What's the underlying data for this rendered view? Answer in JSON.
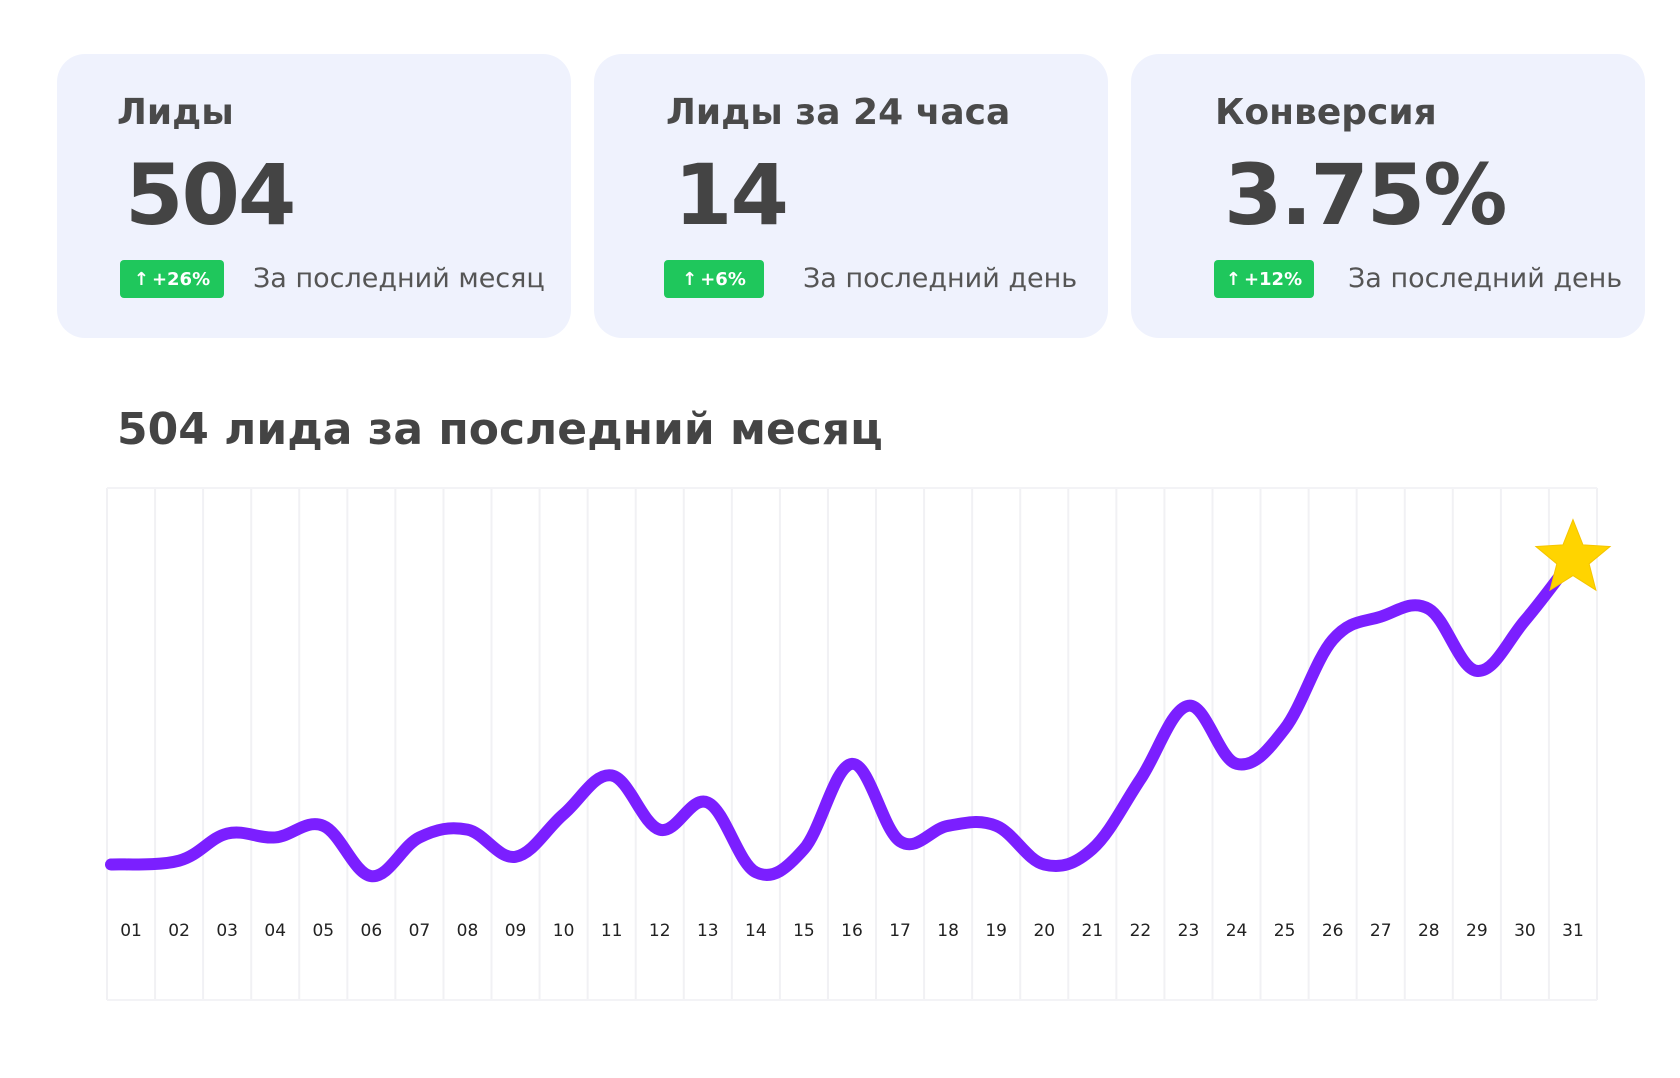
{
  "cards": [
    {
      "title": "Лиды",
      "value": "504",
      "delta": "+26%",
      "caption": "За последний месяц"
    },
    {
      "title": "Лиды за 24 часа",
      "value": "14",
      "delta": "+6%",
      "caption": "За последний день"
    },
    {
      "title": "Конверсия",
      "value": "3.75%",
      "delta": "+12%",
      "caption": "За последний день"
    }
  ],
  "arrow_symbol": "↑",
  "colors": {
    "card_bg": "#eff2fd",
    "badge": "#1fc75c",
    "line": "#7b1fff",
    "star": "#ffd400"
  },
  "chart_title": "504 лида за последний месяц",
  "chart_data": {
    "type": "line",
    "title": "504 лида за последний месяц",
    "categories": [
      "01",
      "02",
      "03",
      "04",
      "05",
      "06",
      "07",
      "08",
      "09",
      "10",
      "11",
      "12",
      "13",
      "14",
      "15",
      "16",
      "17",
      "18",
      "19",
      "20",
      "21",
      "22",
      "23",
      "24",
      "25",
      "26",
      "27",
      "28",
      "29",
      "30",
      "31"
    ],
    "values": [
      2,
      3,
      10,
      9,
      12,
      -1,
      9,
      11,
      4,
      15,
      25,
      11,
      18,
      0,
      6,
      28,
      8,
      12,
      12,
      2,
      6,
      24,
      43,
      28,
      37,
      60,
      66,
      68,
      52,
      65,
      81
    ],
    "ylim": [
      -10,
      100
    ],
    "grid": "vertical",
    "end_marker": "star-icon"
  }
}
